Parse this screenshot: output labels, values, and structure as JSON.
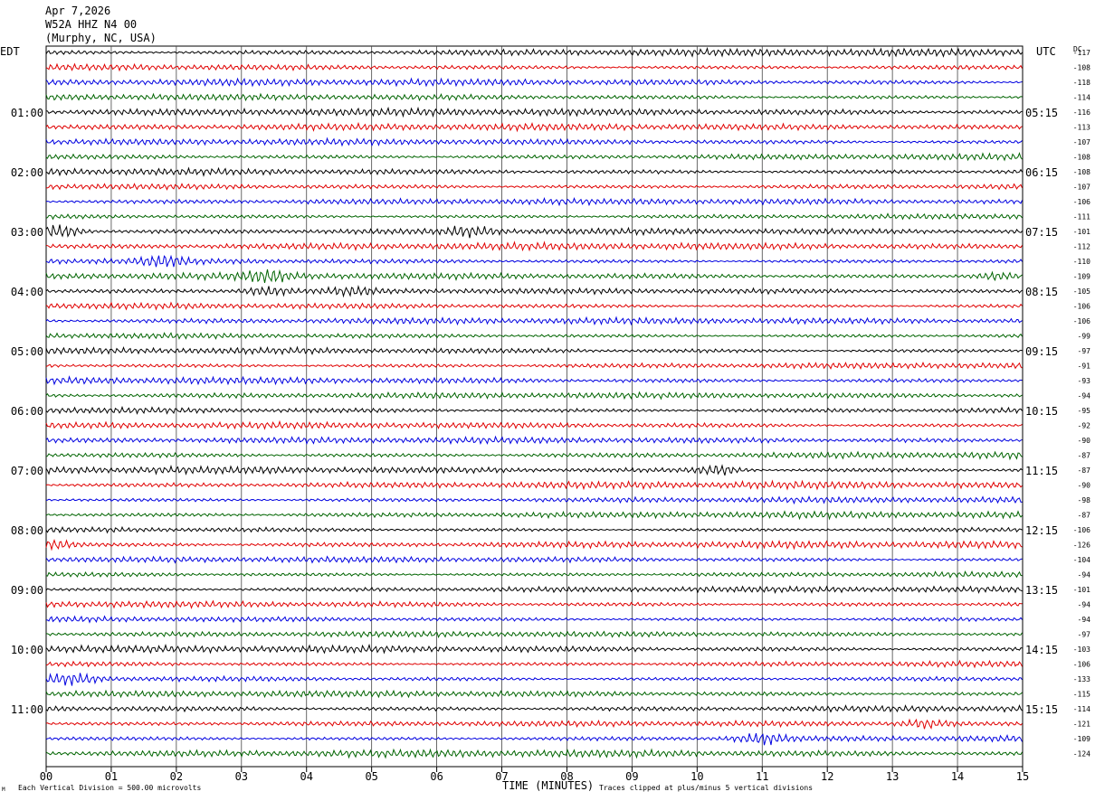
{
  "header": {
    "date": "Apr 7,2026",
    "station": "W52A HHZ N4 00",
    "location": "(Murphy, NC, USA)"
  },
  "left_axis_label": "EDT",
  "right_axis_label": "UTC",
  "dc_label": "DC",
  "footer": {
    "scale_note": "Each Vertical Division =  500.00 microvolts",
    "clip_note": "Traces clipped at plus/minus 5 vertical divisions",
    "corner_mark": "M"
  },
  "colors": {
    "black": "#000000",
    "red": "#e00000",
    "blue": "#0000e0",
    "green": "#006400",
    "grid": "#000000"
  },
  "chart_data": {
    "type": "line",
    "xlabel": "TIME (MINUTES)",
    "xlim": [
      0,
      15
    ],
    "x_ticks": [
      "00",
      "01",
      "02",
      "03",
      "04",
      "05",
      "06",
      "07",
      "08",
      "09",
      "10",
      "11",
      "12",
      "13",
      "14",
      "15"
    ],
    "trace_color_cycle": [
      "black",
      "red",
      "blue",
      "green"
    ],
    "left_hour_labels": [
      "01:00",
      "02:00",
      "03:00",
      "04:00",
      "05:00",
      "06:00",
      "07:00",
      "08:00",
      "09:00",
      "10:00",
      "11:00"
    ],
    "right_hour_labels": [
      "05:15",
      "06:15",
      "07:15",
      "08:15",
      "09:15",
      "10:15",
      "11:15",
      "12:15",
      "13:15",
      "14:15",
      "15:15"
    ],
    "label_trace_index_start": 4,
    "label_trace_step": 4,
    "dc_offsets": [
      "-117",
      "-108",
      "-118",
      "-114",
      "-116",
      "-113",
      "-107",
      "-108",
      "-108",
      "-107",
      "-106",
      "-111",
      "-101",
      "-112",
      "-110",
      "-109",
      "-105",
      "-106",
      "-106",
      "-99",
      "-97",
      "-91",
      "-93",
      "-94",
      "-95",
      "-92",
      "-90",
      "-87",
      "-87",
      "-90",
      "-98",
      "-87",
      "-106",
      "-126",
      "-104",
      "-94",
      "-101",
      "-94",
      "-94",
      "-97",
      "-103",
      "-106",
      "-133",
      "-115",
      "-114",
      "-121",
      "-109",
      "-124"
    ],
    "events": [
      {
        "trace": 12,
        "minute": 0.2,
        "amp": 2.6
      },
      {
        "trace": 12,
        "minute": 6.5,
        "amp": 1.5
      },
      {
        "trace": 14,
        "minute": 1.8,
        "amp": 1.6
      },
      {
        "trace": 15,
        "minute": 3.4,
        "amp": 1.5
      },
      {
        "trace": 15,
        "minute": 14.6,
        "amp": 1.4
      },
      {
        "trace": 16,
        "minute": 3.4,
        "amp": 1.4
      },
      {
        "trace": 16,
        "minute": 4.7,
        "amp": 1.3
      },
      {
        "trace": 28,
        "minute": 10.3,
        "amp": 1.4
      },
      {
        "trace": 33,
        "minute": 0.1,
        "amp": 1.4
      },
      {
        "trace": 42,
        "minute": 0.4,
        "amp": 1.8
      },
      {
        "trace": 45,
        "minute": 13.5,
        "amp": 1.4
      },
      {
        "trace": 46,
        "minute": 11.0,
        "amp": 1.8
      }
    ]
  }
}
